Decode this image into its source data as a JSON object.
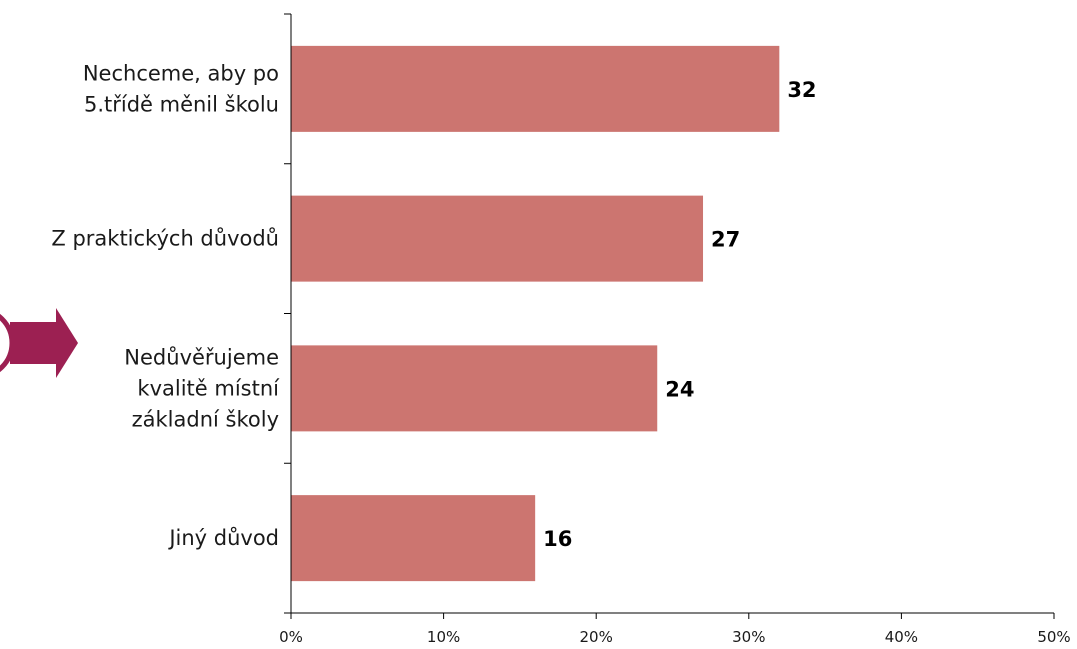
{
  "chart_data": {
    "type": "bar",
    "orientation": "horizontal",
    "categories": [
      [
        "Nechceme, aby po",
        "5.třídě měnil školu"
      ],
      [
        "Z praktických důvodů"
      ],
      [
        "Nedůvěřujeme",
        "kvalitě místní",
        "základní školy"
      ],
      [
        "Jiný důvod"
      ]
    ],
    "values": [
      32,
      27,
      24,
      16
    ],
    "value_labels": [
      "32",
      "27",
      "24",
      "16"
    ],
    "xlim": [
      0,
      50
    ],
    "xticks": [
      0,
      10,
      20,
      30,
      40,
      50
    ],
    "xtick_labels": [
      "0%",
      "10%",
      "20%",
      "30%",
      "40%",
      "50%"
    ],
    "bar_color": "#cc7570",
    "grid": false,
    "legend": "none"
  },
  "decoration": {
    "arrow_icon_color": "#9c2052"
  }
}
